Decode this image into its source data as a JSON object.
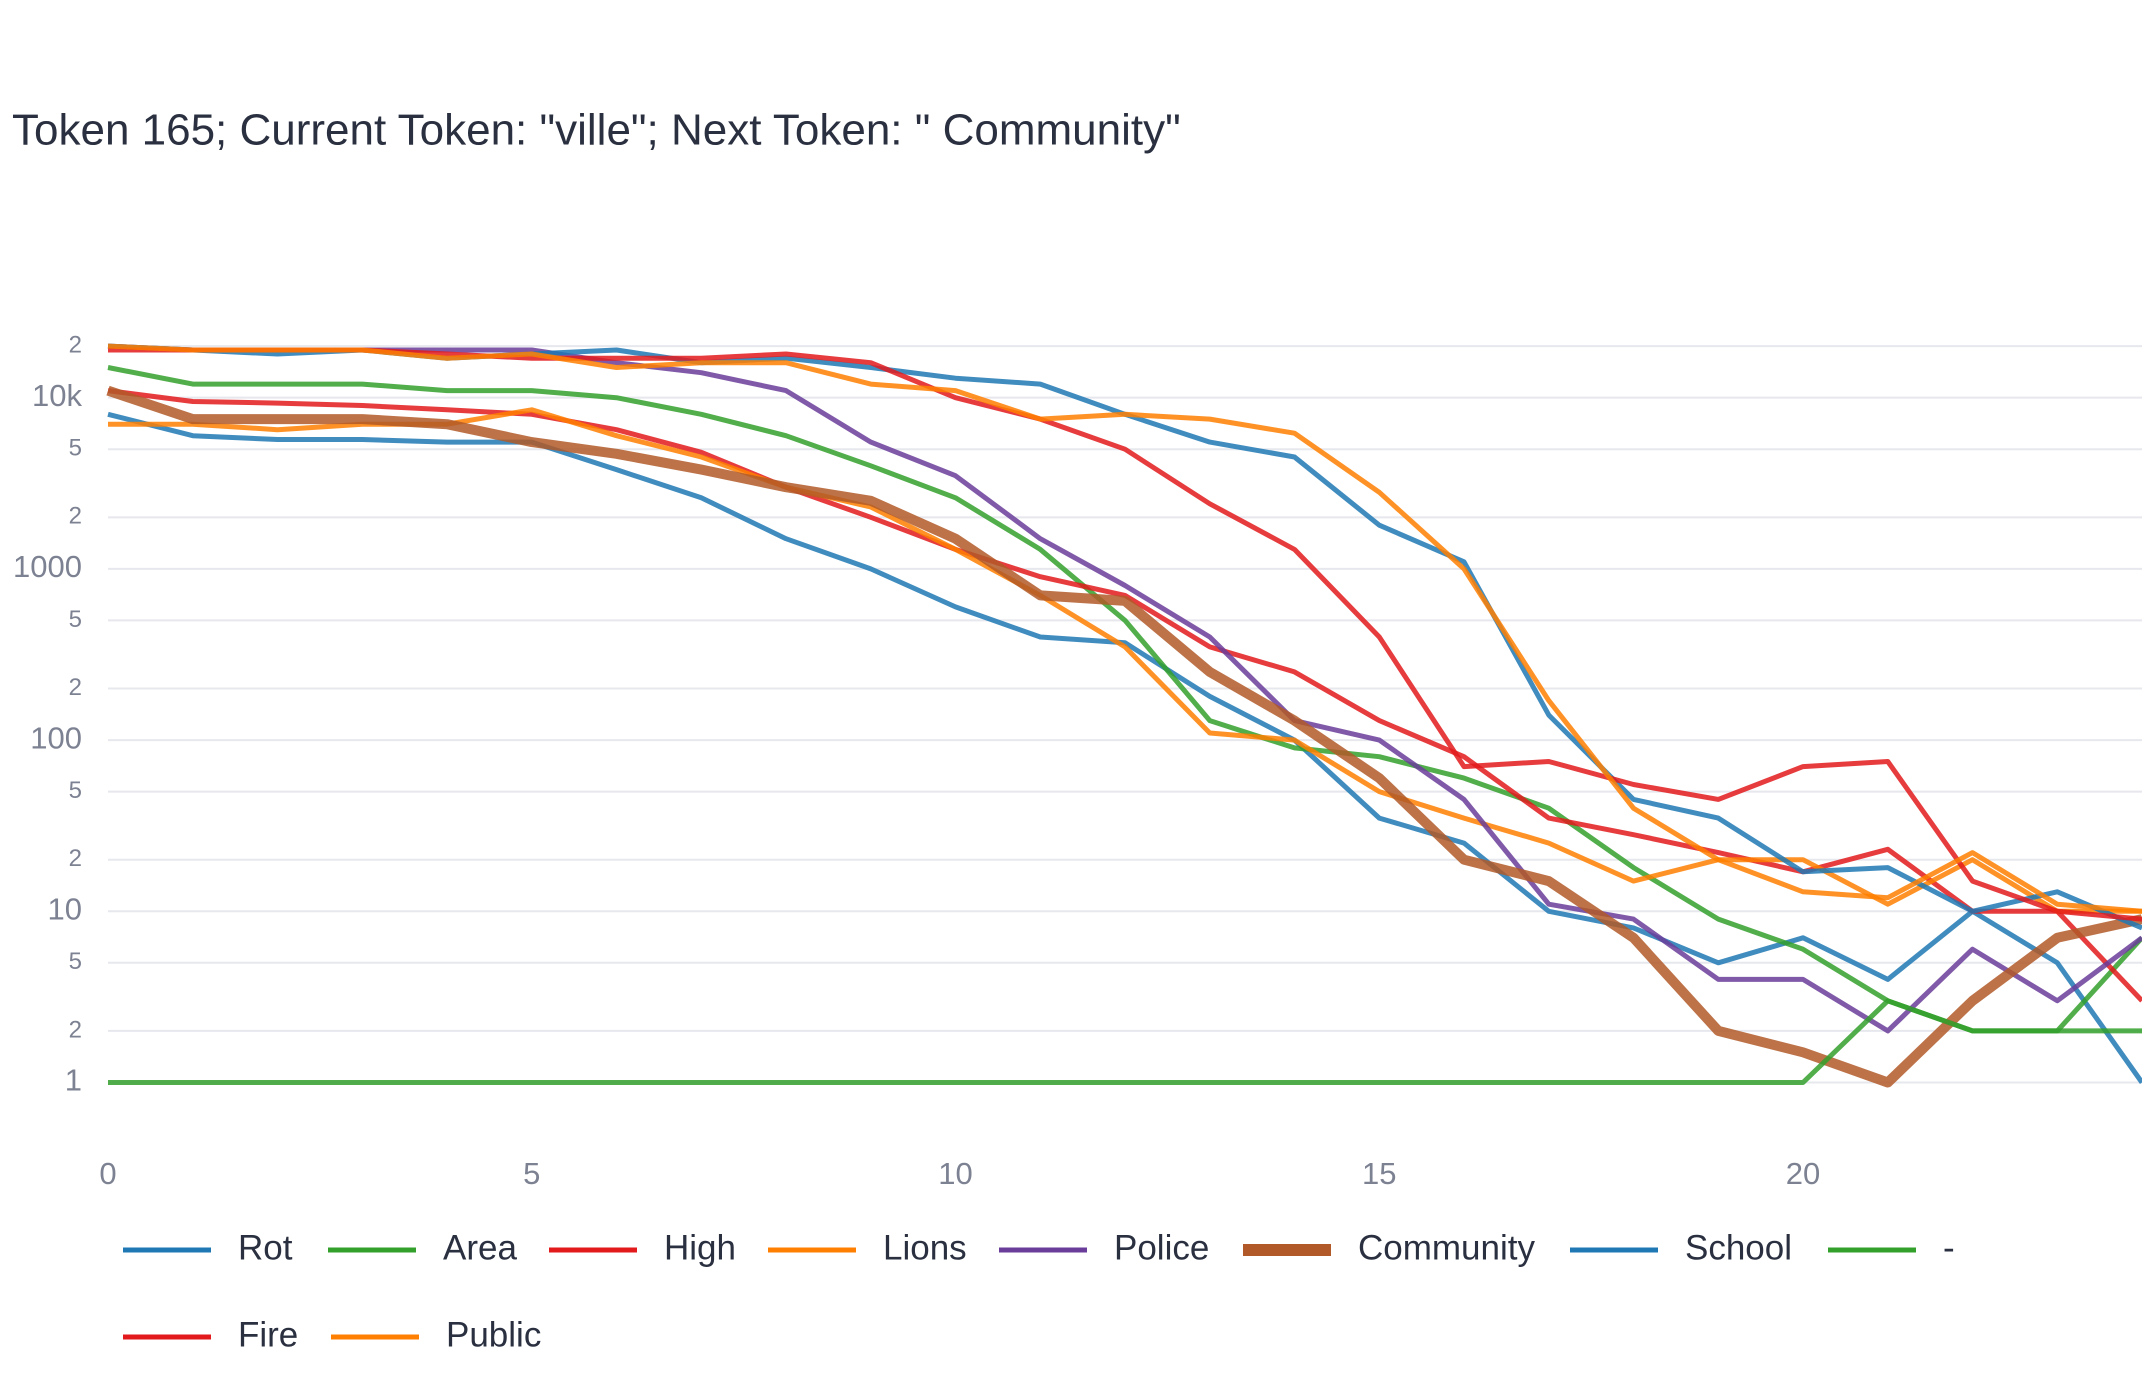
{
  "chart_data": {
    "type": "line",
    "title": "Token 165; Current Token: \"ville\"; Next Token: \" Community\"",
    "log_y": true,
    "grid": true,
    "legend": "bottom",
    "x": [
      0,
      1,
      2,
      3,
      4,
      5,
      6,
      7,
      8,
      9,
      10,
      11,
      12,
      13,
      14,
      15,
      16,
      17,
      18,
      19,
      20,
      21,
      22,
      23,
      24
    ],
    "xlim": [
      0,
      24
    ],
    "xticks": [
      0,
      5,
      10,
      15,
      20
    ],
    "ylim": [
      0.5,
      30000
    ],
    "yticks": [
      1,
      2,
      5,
      10,
      {
        "value": 20,
        "label": "2"
      },
      {
        "value": 50,
        "label": "5"
      },
      100,
      {
        "value": 200,
        "label": "2"
      },
      {
        "value": 500,
        "label": "5"
      },
      1000,
      {
        "value": 2000,
        "label": "2"
      },
      {
        "value": 5000,
        "label": "5"
      },
      {
        "value": 10000,
        "label": "10k"
      },
      {
        "value": 20000,
        "label": "2"
      }
    ],
    "series": [
      {
        "name": "Rot",
        "color": "#1f78b4",
        "values": [
          8000,
          6000,
          5700,
          5700,
          5500,
          5500,
          3800,
          2600,
          1500,
          1000,
          600,
          400,
          370,
          180,
          100,
          35,
          25,
          10,
          8,
          5,
          7,
          4,
          10,
          5,
          1
        ]
      },
      {
        "name": "Area",
        "color": "#33a02c",
        "values": [
          15000,
          12000,
          12000,
          12000,
          11000,
          11000,
          10000,
          8000,
          6000,
          4000,
          2600,
          1300,
          500,
          130,
          90,
          80,
          60,
          40,
          18,
          9,
          6,
          3,
          2,
          2,
          7
        ]
      },
      {
        "name": "High",
        "color": "#e31a1c",
        "values": [
          11000,
          9500,
          9300,
          9000,
          8500,
          8000,
          6500,
          4800,
          3000,
          2000,
          1300,
          900,
          700,
          350,
          250,
          130,
          80,
          35,
          28,
          22,
          17,
          23,
          10,
          10,
          3
        ]
      },
      {
        "name": "Lions",
        "color": "#ff7f00",
        "values": [
          7000,
          7000,
          6500,
          7000,
          7000,
          8500,
          6000,
          4500,
          3000,
          2300,
          1300,
          700,
          350,
          110,
          100,
          50,
          35,
          25,
          15,
          20,
          20,
          11,
          20,
          10,
          10
        ]
      },
      {
        "name": "Police",
        "color": "#6a3d9a",
        "values": [
          20000,
          19000,
          19000,
          19000,
          19000,
          19000,
          16000,
          14000,
          11000,
          5500,
          3500,
          1500,
          800,
          400,
          130,
          100,
          45,
          11,
          9,
          4,
          4,
          2,
          6,
          3,
          7
        ]
      },
      {
        "name": "Community",
        "color": "#b15928",
        "values": [
          11000,
          7500,
          7500,
          7500,
          7000,
          5500,
          4700,
          3800,
          3000,
          2500,
          1500,
          700,
          650,
          250,
          130,
          60,
          20,
          15,
          7,
          2,
          1.5,
          1,
          3,
          7,
          9
        ]
      },
      {
        "name": "School",
        "color": "#1f78b4",
        "values": [
          20000,
          19000,
          18000,
          19000,
          17000,
          18000,
          19000,
          16000,
          17000,
          15000,
          13000,
          12000,
          8000,
          5500,
          4500,
          1800,
          1100,
          140,
          45,
          35,
          17,
          18,
          10,
          13,
          8
        ]
      },
      {
        "name": "-",
        "color": "#33a02c",
        "values": [
          1,
          1,
          1,
          1,
          1,
          1,
          1,
          1,
          1,
          1,
          1,
          1,
          1,
          1,
          1,
          1,
          1,
          1,
          1,
          1,
          1,
          3,
          2,
          2,
          2
        ]
      },
      {
        "name": "Fire",
        "color": "#e31a1c",
        "values": [
          19000,
          19000,
          19000,
          19000,
          18000,
          17000,
          17000,
          17000,
          18000,
          16000,
          10000,
          7500,
          5000,
          2400,
          1300,
          400,
          70,
          75,
          55,
          45,
          70,
          75,
          15,
          10,
          9
        ]
      },
      {
        "name": "Public",
        "color": "#ff7f00",
        "values": [
          20000,
          19000,
          19000,
          19000,
          17000,
          18000,
          15000,
          16000,
          16000,
          12000,
          11000,
          7500,
          8000,
          7500,
          6200,
          2800,
          1000,
          170,
          40,
          20,
          13,
          12,
          22,
          11,
          10
        ]
      }
    ]
  }
}
